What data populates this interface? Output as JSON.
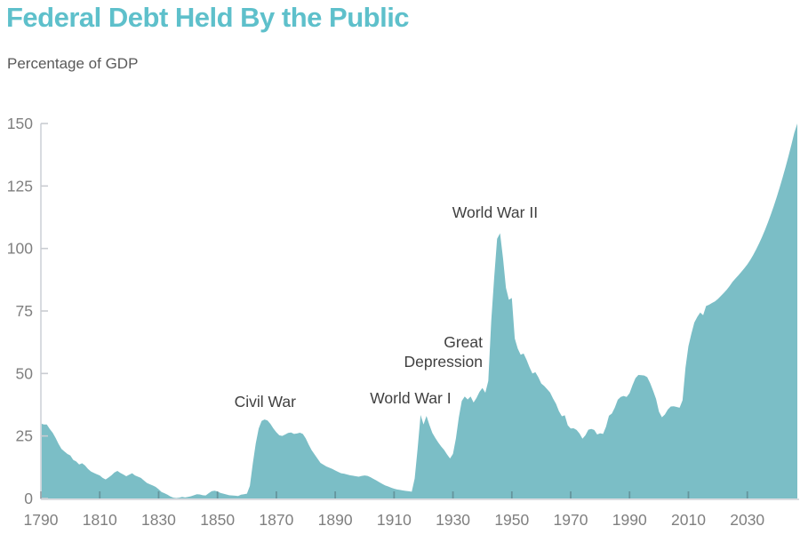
{
  "page": {
    "title": "Federal Debt Held By the Public",
    "subtitle": "Percentage of GDP"
  },
  "colors": {
    "title_teal": "#5ec0cb",
    "area_fill": "#7bbec6",
    "axis_line": "#d4d7dc",
    "y_tick": "#c9ccd1",
    "x_tick_on_area": "rgba(60,75,80,0.35)",
    "tick_label": "#7f7f7f",
    "subtitle_text": "#595959",
    "annotation_text": "#3f3f3f",
    "background": "#ffffff"
  },
  "chart_data": {
    "type": "area",
    "title": "Federal Debt Held By the Public",
    "xlabel": "",
    "ylabel": "Percentage of GDP",
    "xlim": [
      1790,
      2047
    ],
    "ylim": [
      0,
      150
    ],
    "grid": false,
    "legend": "none",
    "x_ticks": [
      1790,
      1810,
      1830,
      1850,
      1870,
      1890,
      1910,
      1930,
      1950,
      1970,
      1990,
      2010,
      2030
    ],
    "y_ticks": [
      0,
      25,
      50,
      75,
      100,
      125,
      150
    ],
    "annotations": [
      {
        "label": "Civil War",
        "lines": [
          "Civil War"
        ],
        "year": 1866.2,
        "value": 38.8,
        "anchor": "middle"
      },
      {
        "label": "World War I",
        "lines": [
          "World War I"
        ],
        "year": 1915.6,
        "value": 40.2,
        "anchor": "middle"
      },
      {
        "label": "Great Depression",
        "lines": [
          "Great",
          "Depression"
        ],
        "year": 1940.1,
        "value": 62.6,
        "anchor": "end"
      },
      {
        "label": "World War II",
        "lines": [
          "World War II"
        ],
        "year": 1944.3,
        "value": 114.5,
        "anchor": "middle"
      }
    ],
    "series": [
      {
        "name": "Federal debt held by the public as a percentage of GDP",
        "points": [
          [
            1790,
            30.0
          ],
          [
            1791,
            29.6
          ],
          [
            1792,
            29.6
          ],
          [
            1793,
            27.8
          ],
          [
            1794,
            26.3
          ],
          [
            1795,
            24.2
          ],
          [
            1796,
            21.8
          ],
          [
            1797,
            19.8
          ],
          [
            1798,
            18.8
          ],
          [
            1799,
            17.8
          ],
          [
            1800,
            17.2
          ],
          [
            1801,
            15.4
          ],
          [
            1802,
            14.8
          ],
          [
            1803,
            13.6
          ],
          [
            1804,
            14.1
          ],
          [
            1805,
            13.2
          ],
          [
            1806,
            11.8
          ],
          [
            1807,
            10.8
          ],
          [
            1808,
            10.2
          ],
          [
            1809,
            9.7
          ],
          [
            1810,
            9.2
          ],
          [
            1811,
            8.2
          ],
          [
            1812,
            7.6
          ],
          [
            1813,
            8.4
          ],
          [
            1814,
            9.3
          ],
          [
            1815,
            10.4
          ],
          [
            1816,
            11.0
          ],
          [
            1817,
            10.2
          ],
          [
            1818,
            9.6
          ],
          [
            1819,
            8.9
          ],
          [
            1820,
            9.5
          ],
          [
            1821,
            10.1
          ],
          [
            1822,
            9.2
          ],
          [
            1823,
            8.7
          ],
          [
            1824,
            8.2
          ],
          [
            1825,
            7.2
          ],
          [
            1826,
            6.2
          ],
          [
            1827,
            5.7
          ],
          [
            1828,
            5.2
          ],
          [
            1829,
            4.6
          ],
          [
            1830,
            3.7
          ],
          [
            1831,
            2.6
          ],
          [
            1832,
            2.1
          ],
          [
            1833,
            1.5
          ],
          [
            1834,
            0.8
          ],
          [
            1835,
            0.3
          ],
          [
            1836,
            0.2
          ],
          [
            1837,
            0.3
          ],
          [
            1838,
            0.6
          ],
          [
            1839,
            0.4
          ],
          [
            1840,
            0.6
          ],
          [
            1841,
            0.9
          ],
          [
            1842,
            1.3
          ],
          [
            1843,
            1.7
          ],
          [
            1844,
            1.6
          ],
          [
            1845,
            1.3
          ],
          [
            1846,
            1.2
          ],
          [
            1847,
            2.1
          ],
          [
            1848,
            2.9
          ],
          [
            1849,
            3.1
          ],
          [
            1850,
            2.8
          ],
          [
            1851,
            2.2
          ],
          [
            1852,
            1.9
          ],
          [
            1853,
            1.6
          ],
          [
            1854,
            1.3
          ],
          [
            1855,
            1.2
          ],
          [
            1856,
            1.1
          ],
          [
            1857,
            1.0
          ],
          [
            1858,
            1.5
          ],
          [
            1859,
            1.7
          ],
          [
            1860,
            1.9
          ],
          [
            1861,
            5.0
          ],
          [
            1862,
            14.0
          ],
          [
            1863,
            22.0
          ],
          [
            1864,
            28.0
          ],
          [
            1865,
            31.0
          ],
          [
            1866,
            31.6
          ],
          [
            1867,
            31.2
          ],
          [
            1868,
            29.8
          ],
          [
            1869,
            28.0
          ],
          [
            1870,
            26.5
          ],
          [
            1871,
            25.3
          ],
          [
            1872,
            25.0
          ],
          [
            1873,
            25.6
          ],
          [
            1874,
            26.2
          ],
          [
            1875,
            26.4
          ],
          [
            1876,
            25.8
          ],
          [
            1877,
            26.0
          ],
          [
            1878,
            26.3
          ],
          [
            1879,
            25.8
          ],
          [
            1880,
            24.0
          ],
          [
            1881,
            21.5
          ],
          [
            1882,
            19.3
          ],
          [
            1883,
            17.6
          ],
          [
            1884,
            15.9
          ],
          [
            1885,
            14.2
          ],
          [
            1886,
            13.5
          ],
          [
            1887,
            12.8
          ],
          [
            1888,
            12.3
          ],
          [
            1889,
            11.8
          ],
          [
            1890,
            11.2
          ],
          [
            1891,
            10.6
          ],
          [
            1892,
            10.1
          ],
          [
            1893,
            9.9
          ],
          [
            1894,
            9.6
          ],
          [
            1895,
            9.3
          ],
          [
            1896,
            9.1
          ],
          [
            1897,
            8.9
          ],
          [
            1898,
            8.7
          ],
          [
            1899,
            9.0
          ],
          [
            1900,
            9.2
          ],
          [
            1901,
            9.0
          ],
          [
            1902,
            8.5
          ],
          [
            1903,
            7.8
          ],
          [
            1904,
            7.2
          ],
          [
            1905,
            6.5
          ],
          [
            1906,
            5.8
          ],
          [
            1907,
            5.2
          ],
          [
            1908,
            4.8
          ],
          [
            1909,
            4.3
          ],
          [
            1910,
            3.9
          ],
          [
            1911,
            3.6
          ],
          [
            1912,
            3.4
          ],
          [
            1913,
            3.2
          ],
          [
            1914,
            3.0
          ],
          [
            1915,
            2.9
          ],
          [
            1916,
            2.7
          ],
          [
            1917,
            8.0
          ],
          [
            1918,
            20.0
          ],
          [
            1919,
            33.4
          ],
          [
            1920,
            29.6
          ],
          [
            1921,
            33.0
          ],
          [
            1922,
            29.4
          ],
          [
            1923,
            26.2
          ],
          [
            1924,
            24.2
          ],
          [
            1925,
            22.4
          ],
          [
            1926,
            20.8
          ],
          [
            1927,
            19.4
          ],
          [
            1928,
            17.6
          ],
          [
            1929,
            16.0
          ],
          [
            1930,
            17.8
          ],
          [
            1931,
            24.0
          ],
          [
            1932,
            32.5
          ],
          [
            1933,
            39.0
          ],
          [
            1934,
            40.8
          ],
          [
            1935,
            39.6
          ],
          [
            1936,
            40.8
          ],
          [
            1937,
            38.4
          ],
          [
            1938,
            40.2
          ],
          [
            1939,
            42.6
          ],
          [
            1940,
            44.2
          ],
          [
            1941,
            42.3
          ],
          [
            1942,
            47.0
          ],
          [
            1943,
            70.9
          ],
          [
            1944,
            88.3
          ],
          [
            1945,
            103.9
          ],
          [
            1946,
            106.1
          ],
          [
            1947,
            96.2
          ],
          [
            1948,
            84.3
          ],
          [
            1949,
            79.5
          ],
          [
            1950,
            80.2
          ],
          [
            1951,
            64.0
          ],
          [
            1952,
            60.0
          ],
          [
            1953,
            57.5
          ],
          [
            1954,
            58.0
          ],
          [
            1955,
            55.5
          ],
          [
            1956,
            52.5
          ],
          [
            1957,
            50.0
          ],
          [
            1958,
            50.5
          ],
          [
            1959,
            48.5
          ],
          [
            1960,
            46.0
          ],
          [
            1961,
            45.0
          ],
          [
            1962,
            43.7
          ],
          [
            1963,
            42.4
          ],
          [
            1964,
            40.0
          ],
          [
            1965,
            37.9
          ],
          [
            1966,
            34.9
          ],
          [
            1967,
            32.9
          ],
          [
            1968,
            33.3
          ],
          [
            1969,
            29.3
          ],
          [
            1970,
            28.0
          ],
          [
            1971,
            28.1
          ],
          [
            1972,
            27.4
          ],
          [
            1973,
            26.0
          ],
          [
            1974,
            23.9
          ],
          [
            1975,
            25.3
          ],
          [
            1976,
            27.5
          ],
          [
            1977,
            27.8
          ],
          [
            1978,
            27.4
          ],
          [
            1979,
            25.6
          ],
          [
            1980,
            26.1
          ],
          [
            1981,
            25.8
          ],
          [
            1982,
            28.7
          ],
          [
            1983,
            33.1
          ],
          [
            1984,
            34.0
          ],
          [
            1985,
            36.4
          ],
          [
            1986,
            39.5
          ],
          [
            1987,
            40.6
          ],
          [
            1988,
            41.0
          ],
          [
            1989,
            40.6
          ],
          [
            1990,
            42.1
          ],
          [
            1991,
            45.3
          ],
          [
            1992,
            48.1
          ],
          [
            1993,
            49.4
          ],
          [
            1994,
            49.3
          ],
          [
            1995,
            49.2
          ],
          [
            1996,
            48.5
          ],
          [
            1997,
            46.1
          ],
          [
            1998,
            43.1
          ],
          [
            1999,
            39.8
          ],
          [
            2000,
            34.7
          ],
          [
            2001,
            32.5
          ],
          [
            2002,
            33.6
          ],
          [
            2003,
            35.6
          ],
          [
            2004,
            36.8
          ],
          [
            2005,
            36.9
          ],
          [
            2006,
            36.6
          ],
          [
            2007,
            36.3
          ],
          [
            2008,
            39.3
          ],
          [
            2009,
            52.3
          ],
          [
            2010,
            60.9
          ],
          [
            2011,
            65.9
          ],
          [
            2012,
            70.4
          ],
          [
            2013,
            72.6
          ],
          [
            2014,
            74.4
          ],
          [
            2015,
            73.3
          ],
          [
            2016,
            77.0
          ],
          [
            2017,
            77.5
          ],
          [
            2018,
            78.2
          ],
          [
            2019,
            78.8
          ],
          [
            2020,
            79.8
          ],
          [
            2021,
            81.0
          ],
          [
            2022,
            82.2
          ],
          [
            2023,
            83.5
          ],
          [
            2024,
            85.0
          ],
          [
            2025,
            86.7
          ],
          [
            2026,
            88.0
          ],
          [
            2027,
            89.3
          ],
          [
            2028,
            90.7
          ],
          [
            2029,
            92.1
          ],
          [
            2030,
            93.6
          ],
          [
            2031,
            95.4
          ],
          [
            2032,
            97.4
          ],
          [
            2033,
            99.6
          ],
          [
            2034,
            102.0
          ],
          [
            2035,
            104.6
          ],
          [
            2036,
            107.4
          ],
          [
            2037,
            110.4
          ],
          [
            2038,
            113.6
          ],
          [
            2039,
            117.0
          ],
          [
            2040,
            120.6
          ],
          [
            2041,
            124.4
          ],
          [
            2042,
            128.4
          ],
          [
            2043,
            132.6
          ],
          [
            2044,
            137.0
          ],
          [
            2045,
            141.6
          ],
          [
            2046,
            146.4
          ],
          [
            2047,
            150.0
          ]
        ]
      }
    ]
  }
}
